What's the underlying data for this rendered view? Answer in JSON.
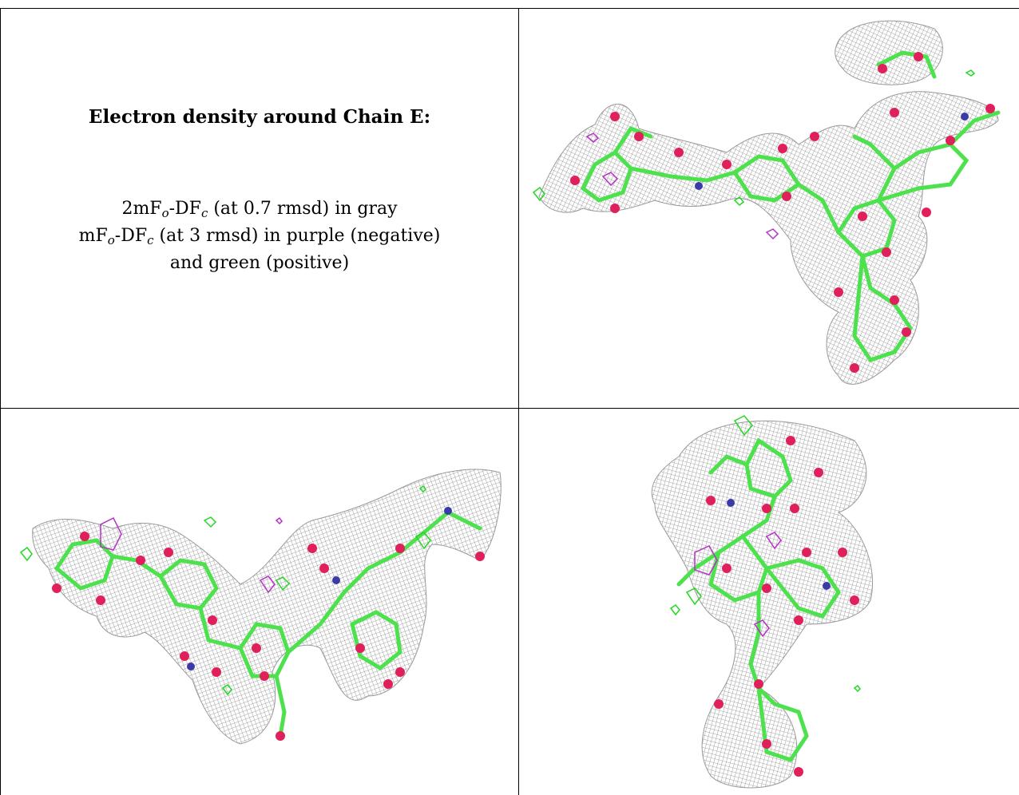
{
  "caption": {
    "title": "Electron density around Chain E:",
    "line1": {
      "a": "2mF",
      "o": "o",
      "b": "-DF",
      "c": "c",
      "rest": " (at 0.7 rmsd) in gray"
    },
    "line2": {
      "a": "mF",
      "o": "o",
      "b": "-DF",
      "c": "c",
      "rest": " (at 3 rmsd) in purple (negative)"
    },
    "line3": "and green (positive)"
  },
  "panels": [
    {
      "name": "view-top-right"
    },
    {
      "name": "view-bottom-left"
    },
    {
      "name": "view-bottom-right"
    }
  ],
  "colors": {
    "mesh": "#8a8a8a",
    "bond": "#4de24d",
    "oxygen": "#e0205a",
    "nitrogen": "#3a3aa8",
    "negative": "#b830c8",
    "positive": "#22d822"
  }
}
